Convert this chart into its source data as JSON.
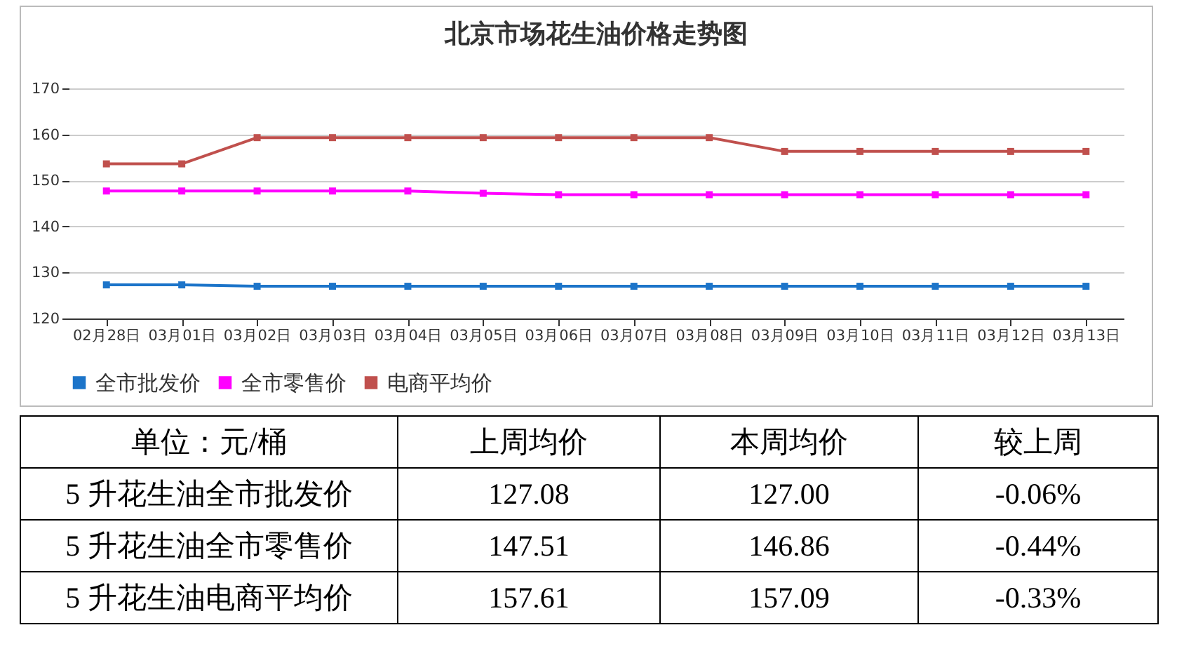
{
  "chart_data": {
    "type": "line",
    "title": "北京市场花生油价格走势图",
    "categories": [
      "02月28日",
      "03月01日",
      "03月02日",
      "03月03日",
      "03月04日",
      "03月05日",
      "03月06日",
      "03月07日",
      "03月08日",
      "03月09日",
      "03月10日",
      "03月11日",
      "03月12日",
      "03月13日"
    ],
    "series": [
      {
        "name": "全市批发价",
        "color": "#1c74c9",
        "values": [
          127.3,
          127.3,
          127.0,
          127.0,
          127.0,
          127.0,
          127.0,
          127.0,
          127.0,
          127.0,
          127.0,
          127.0,
          127.0,
          127.0
        ]
      },
      {
        "name": "全市零售价",
        "color": "#ff00ff",
        "values": [
          147.7,
          147.7,
          147.7,
          147.7,
          147.7,
          147.2,
          146.9,
          146.9,
          146.9,
          146.9,
          146.9,
          146.9,
          146.9,
          146.9
        ]
      },
      {
        "name": "电商平均价",
        "color": "#c0504d",
        "values": [
          153.6,
          153.6,
          159.3,
          159.3,
          159.3,
          159.3,
          159.3,
          159.3,
          159.3,
          156.3,
          156.3,
          156.3,
          156.3,
          156.3
        ]
      }
    ],
    "ylim": [
      120,
      170
    ],
    "yticks": [
      120,
      130,
      140,
      150,
      160,
      170
    ],
    "grid": "y",
    "legend": "bottom",
    "marker": "square",
    "line_style": "solid",
    "annotations": [
      "单位：元/桶",
      "上周均价",
      "本周均价",
      "较上周",
      "5 升花生油全市批发价",
      "127.08",
      "127.00",
      "-0.06%",
      "5 升花生油全市零售价",
      "147.51",
      "146.86",
      "-0.44%",
      "5 升花生油电商平均价",
      "157.61",
      "157.09",
      "-0.33%"
    ]
  }
}
